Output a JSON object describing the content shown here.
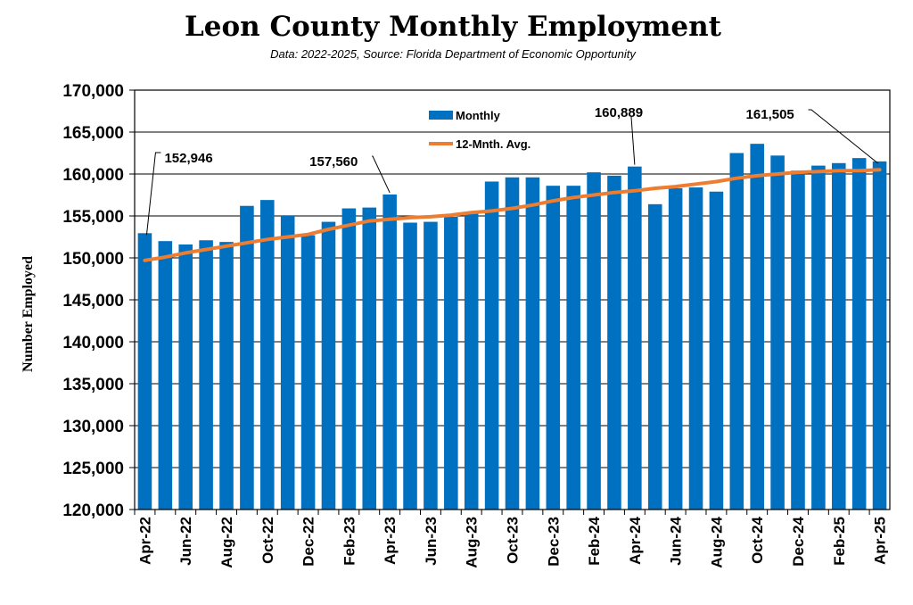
{
  "title": "Leon County Monthly Employment",
  "subtitle": "Data: 2022-2025, Source: Florida Department of Economic Opportunity",
  "colors": {
    "bar": "#0070C0",
    "avg_line": "#ED7D31",
    "grid": "#000000"
  },
  "chart_data": {
    "type": "bar",
    "ylabel": "Number Employed",
    "ylim": [
      120000,
      170000
    ],
    "ytick_step": 5000,
    "ytick_labels": [
      "120,000",
      "125,000",
      "130,000",
      "135,000",
      "140,000",
      "145,000",
      "150,000",
      "155,000",
      "160,000",
      "165,000",
      "170,000"
    ],
    "grid": true,
    "legend_position": "top-center",
    "categories": [
      "Apr-22",
      "May-22",
      "Jun-22",
      "Jul-22",
      "Aug-22",
      "Sep-22",
      "Oct-22",
      "Nov-22",
      "Dec-22",
      "Jan-23",
      "Feb-23",
      "Mar-23",
      "Apr-23",
      "May-23",
      "Jun-23",
      "Jul-23",
      "Aug-23",
      "Sep-23",
      "Oct-23",
      "Nov-23",
      "Dec-23",
      "Jan-24",
      "Feb-24",
      "Mar-24",
      "Apr-24",
      "May-24",
      "Jun-24",
      "Jul-24",
      "Aug-24",
      "Sep-24",
      "Oct-24",
      "Nov-24",
      "Dec-24",
      "Jan-25",
      "Feb-25",
      "Mar-25",
      "Apr-25"
    ],
    "xtick_labels": [
      "Apr-22",
      "",
      "Jun-22",
      "",
      "Aug-22",
      "",
      "Oct-22",
      "",
      "Dec-22",
      "",
      "Feb-23",
      "",
      "Apr-23",
      "",
      "Jun-23",
      "",
      "Aug-23",
      "",
      "Oct-23",
      "",
      "Dec-23",
      "",
      "Feb-24",
      "",
      "Apr-24",
      "",
      "Jun-24",
      "",
      "Aug-24",
      "",
      "Oct-24",
      "",
      "Dec-24",
      "",
      "Feb-25",
      "",
      "Apr-25"
    ],
    "series": [
      {
        "name": "Monthly",
        "type": "bar",
        "values": [
          152946,
          152000,
          151600,
          152100,
          151900,
          156200,
          156900,
          155000,
          152700,
          154300,
          155900,
          156000,
          157560,
          154200,
          154300,
          154900,
          155300,
          159100,
          159600,
          159600,
          158600,
          158600,
          160200,
          159800,
          160889,
          156400,
          158300,
          158400,
          157900,
          162500,
          163600,
          162200,
          160400,
          161000,
          161300,
          161900,
          161505
        ]
      },
      {
        "name": "12-Mnth. Avg.",
        "type": "line",
        "values": [
          149700,
          150100,
          150600,
          151000,
          151400,
          151800,
          152200,
          152500,
          152800,
          153400,
          153900,
          154400,
          154600,
          154800,
          154900,
          155100,
          155400,
          155600,
          155900,
          156300,
          156800,
          157200,
          157500,
          157800,
          158000,
          158300,
          158500,
          158800,
          159100,
          159500,
          159800,
          160000,
          160200,
          160300,
          160400,
          160400,
          160500
        ]
      }
    ],
    "annotations": [
      {
        "label": "152,946",
        "category": "Apr-22",
        "value": 152946
      },
      {
        "label": "157,560",
        "category": "Apr-23",
        "value": 157560
      },
      {
        "label": "160,889",
        "category": "Apr-24",
        "value": 160889
      },
      {
        "label": "161,505",
        "category": "Apr-25",
        "value": 161505
      }
    ]
  }
}
